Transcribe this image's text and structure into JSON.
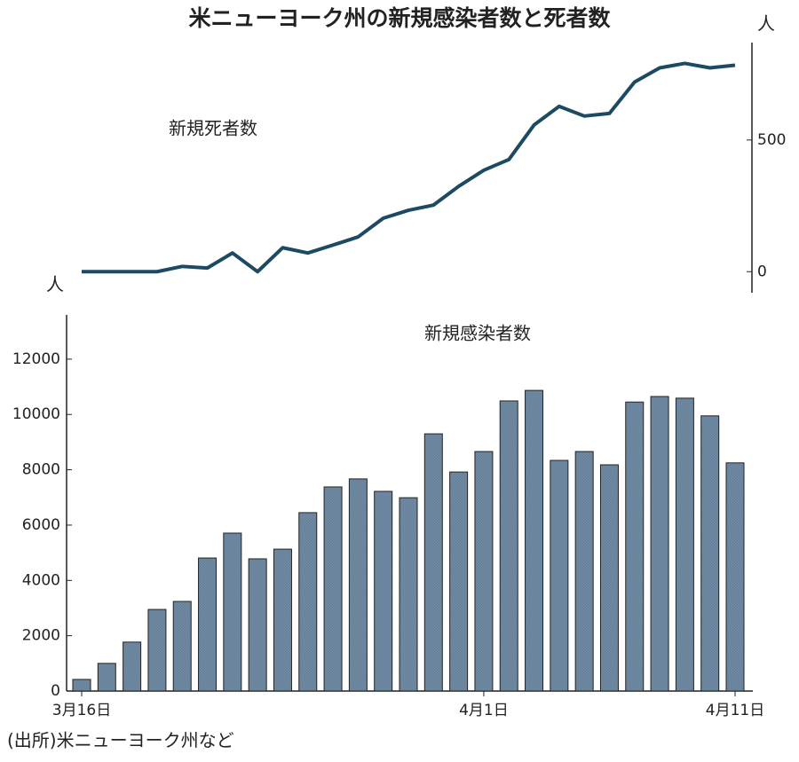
{
  "title": "米ニューヨーク州の新規感染者数と死者数",
  "source": "(出所)米ニューヨーク州など",
  "chart_data": [
    {
      "type": "line",
      "label": "新規死者数",
      "unit": "人",
      "color": "#1d4a63",
      "values": [
        0,
        0,
        0,
        0,
        20,
        14,
        71,
        0,
        91,
        71,
        101,
        132,
        203,
        233,
        253,
        324,
        385,
        426,
        557,
        628,
        591,
        601,
        720,
        774,
        791,
        774,
        784
      ],
      "ylim": [
        -80,
        870
      ],
      "yticks": [
        0,
        500
      ]
    },
    {
      "type": "bar",
      "label": "新規感染者数",
      "unit": "人",
      "color": "#6f8aa2",
      "categories": [
        "3月16日",
        null,
        null,
        null,
        null,
        null,
        null,
        null,
        null,
        null,
        null,
        null,
        null,
        null,
        null,
        null,
        "4月1日",
        null,
        null,
        null,
        null,
        null,
        null,
        null,
        null,
        null,
        "4月11日"
      ],
      "values": [
        420,
        1000,
        1770,
        2950,
        3240,
        4810,
        5710,
        4780,
        5130,
        6450,
        7380,
        7670,
        7220,
        6990,
        9300,
        7920,
        8660,
        10490,
        10870,
        8340,
        8660,
        8180,
        10450,
        10650,
        10590,
        9950,
        8250
      ],
      "ylim": [
        0,
        13600
      ],
      "yticks": [
        0,
        2000,
        4000,
        6000,
        8000,
        10000,
        12000
      ]
    }
  ]
}
